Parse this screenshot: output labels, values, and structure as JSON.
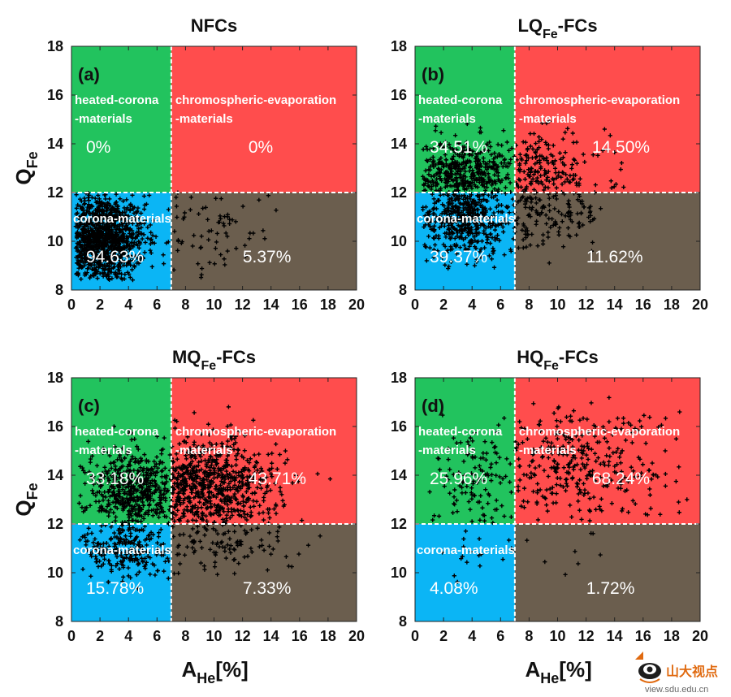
{
  "chart_data": [
    {
      "type": "scatter",
      "panel_label": "(a)",
      "title_main": "NFCs",
      "title_sub": "",
      "title_tail": "",
      "xlim": [
        0,
        20
      ],
      "ylim": [
        8,
        18
      ],
      "xticks": [
        0,
        2,
        4,
        6,
        8,
        10,
        12,
        14,
        16,
        18,
        20
      ],
      "yticks": [
        8,
        10,
        12,
        14,
        16,
        18
      ],
      "ylabel_main": "Q",
      "ylabel_sub": "Fe",
      "xlabel_main": "",
      "xlabel_sub": "",
      "xlabel_tail": "",
      "thresholds": {
        "x": 7,
        "y": 12
      },
      "regions": {
        "upper_left": {
          "label_1": "heated-corona",
          "label_2": "-materials",
          "percent": "0%"
        },
        "upper_right": {
          "label_1": "chromospheric-evaporation",
          "label_2": "-materials",
          "percent": "0%"
        },
        "lower_left": {
          "label_1": "corona-materials",
          "percent": "94.63%"
        },
        "lower_right": {
          "percent": "5.37%"
        }
      },
      "clusters": [
        {
          "n": 1100,
          "x": [
            0.3,
            7
          ],
          "y": [
            8.4,
            12
          ],
          "xpeak": 2.0,
          "ypeak": 10.1,
          "xspread": 1.6,
          "yspread": 0.9
        },
        {
          "n": 70,
          "x": [
            7,
            19
          ],
          "y": [
            8.4,
            12
          ],
          "xpeak": 9.0,
          "ypeak": 10.6,
          "xspread": 3.0,
          "yspread": 1.0
        }
      ]
    },
    {
      "type": "scatter",
      "panel_label": "(b)",
      "title_main": "LQ",
      "title_sub": "Fe",
      "title_tail": "-FCs",
      "xlim": [
        0,
        20
      ],
      "ylim": [
        8,
        18
      ],
      "xticks": [
        0,
        2,
        4,
        6,
        8,
        10,
        12,
        14,
        16,
        18,
        20
      ],
      "yticks": [
        8,
        10,
        12,
        14,
        16,
        18
      ],
      "ylabel_main": "",
      "ylabel_sub": "",
      "xlabel_main": "",
      "xlabel_sub": "",
      "xlabel_tail": "",
      "thresholds": {
        "x": 7,
        "y": 12
      },
      "regions": {
        "upper_left": {
          "label_1": "heated-corona",
          "label_2": "-materials",
          "percent": "34.51%"
        },
        "upper_right": {
          "label_1": "chromospheric-evaporation",
          "label_2": "-materials",
          "percent": "14.50%"
        },
        "lower_left": {
          "label_1": "corona-materials",
          "percent": "39.37%"
        },
        "lower_right": {
          "percent": "11.62%"
        }
      },
      "clusters": [
        {
          "n": 420,
          "x": [
            0.5,
            7
          ],
          "y": [
            12,
            15.2
          ],
          "xpeak": 3.5,
          "ypeak": 12.8,
          "xspread": 1.8,
          "yspread": 0.7
        },
        {
          "n": 480,
          "x": [
            0.5,
            7
          ],
          "y": [
            8.8,
            12
          ],
          "xpeak": 3.5,
          "ypeak": 11.0,
          "xspread": 1.8,
          "yspread": 0.8
        },
        {
          "n": 180,
          "x": [
            7,
            20
          ],
          "y": [
            12,
            15.5
          ],
          "xpeak": 8.5,
          "ypeak": 12.8,
          "xspread": 2.5,
          "yspread": 0.8
        },
        {
          "n": 140,
          "x": [
            7,
            20
          ],
          "y": [
            9,
            12
          ],
          "xpeak": 8.5,
          "ypeak": 11.2,
          "xspread": 2.5,
          "yspread": 0.8
        }
      ]
    },
    {
      "type": "scatter",
      "panel_label": "(c)",
      "title_main": "MQ",
      "title_sub": "Fe",
      "title_tail": "-FCs",
      "xlim": [
        0,
        20
      ],
      "ylim": [
        8,
        18
      ],
      "xticks": [
        0,
        2,
        4,
        6,
        8,
        10,
        12,
        14,
        16,
        18,
        20
      ],
      "yticks": [
        8,
        10,
        12,
        14,
        16,
        18
      ],
      "ylabel_main": "Q",
      "ylabel_sub": "Fe",
      "xlabel_main": "A",
      "xlabel_sub": "He",
      "xlabel_tail": "[%]",
      "thresholds": {
        "x": 7,
        "y": 12
      },
      "regions": {
        "upper_left": {
          "label_1": "heated-corona",
          "label_2": "-materials",
          "percent": "33.18%"
        },
        "upper_right": {
          "label_1": "chromospheric-evaporation",
          "label_2": "-materials",
          "percent": "43.71%"
        },
        "lower_left": {
          "label_1": "corona-materials",
          "percent": "15.78%"
        },
        "lower_right": {
          "percent": "7.33%"
        }
      },
      "clusters": [
        {
          "n": 520,
          "x": [
            0.5,
            7
          ],
          "y": [
            12,
            16.5
          ],
          "xpeak": 4.5,
          "ypeak": 13.3,
          "xspread": 1.7,
          "yspread": 0.9
        },
        {
          "n": 680,
          "x": [
            7,
            20
          ],
          "y": [
            12,
            17
          ],
          "xpeak": 9.0,
          "ypeak": 13.5,
          "xspread": 2.8,
          "yspread": 1.0
        },
        {
          "n": 240,
          "x": [
            0.5,
            7
          ],
          "y": [
            9.3,
            12
          ],
          "xpeak": 3.8,
          "ypeak": 11.0,
          "xspread": 1.6,
          "yspread": 0.7
        },
        {
          "n": 110,
          "x": [
            7,
            20
          ],
          "y": [
            9.3,
            12
          ],
          "xpeak": 10.0,
          "ypeak": 11.3,
          "xspread": 3.0,
          "yspread": 0.7
        }
      ]
    },
    {
      "type": "scatter",
      "panel_label": "(d)",
      "title_main": "HQ",
      "title_sub": "Fe",
      "title_tail": "-FCs",
      "xlim": [
        0,
        20
      ],
      "ylim": [
        8,
        18
      ],
      "xticks": [
        0,
        2,
        4,
        6,
        8,
        10,
        12,
        14,
        16,
        18,
        20
      ],
      "yticks": [
        8,
        10,
        12,
        14,
        16,
        18
      ],
      "ylabel_main": "",
      "ylabel_sub": "",
      "xlabel_main": "A",
      "xlabel_sub": "He",
      "xlabel_tail": "[%]",
      "thresholds": {
        "x": 7,
        "y": 12
      },
      "regions": {
        "upper_left": {
          "label_1": "heated-corona",
          "label_2": "-materials",
          "percent": "25.96%"
        },
        "upper_right": {
          "label_1": "chromospheric-evaporation",
          "label_2": "-materials",
          "percent": "68.24%"
        },
        "lower_left": {
          "label_1": "corona-materials",
          "percent": "4.08%"
        },
        "lower_right": {
          "percent": "1.72%"
        }
      },
      "clusters": [
        {
          "n": 120,
          "x": [
            1,
            7
          ],
          "y": [
            12,
            16.8
          ],
          "xpeak": 4.2,
          "ypeak": 13.8,
          "xspread": 1.7,
          "yspread": 1.1
        },
        {
          "n": 330,
          "x": [
            7,
            20
          ],
          "y": [
            12,
            17.4
          ],
          "xpeak": 11.0,
          "ypeak": 14.5,
          "xspread": 3.5,
          "yspread": 1.2
        },
        {
          "n": 18,
          "x": [
            1,
            7
          ],
          "y": [
            9.5,
            12
          ],
          "xpeak": 3.5,
          "ypeak": 10.8,
          "xspread": 1.8,
          "yspread": 0.6
        },
        {
          "n": 8,
          "x": [
            7,
            14
          ],
          "y": [
            9.5,
            12
          ],
          "xpeak": 10.0,
          "ypeak": 11.0,
          "xspread": 2.5,
          "yspread": 0.6
        }
      ]
    }
  ],
  "colors": {
    "upper_left": "#22c35e",
    "upper_right": "#ff4d4d",
    "lower_left": "#0bb5f5",
    "lower_right": "#6b5e4e",
    "points": "#000000",
    "threshold_line": "#ffffff"
  },
  "watermark": {
    "text": "山大视点",
    "url": "view.sdu.edu.cn",
    "icon": "sdu-eye-logo-icon"
  }
}
